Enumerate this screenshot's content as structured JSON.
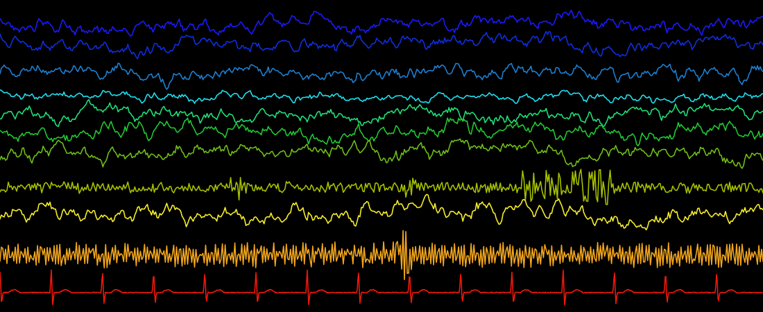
{
  "chart_data": {
    "type": "line",
    "background": "#000000",
    "grid": false,
    "axes_visible": false,
    "legend": "none",
    "title": "",
    "xlabel": "",
    "ylabel": "",
    "series": [
      {
        "color": "#1a1aff",
        "style": "slow"
      },
      {
        "color": "#0f2ee0",
        "style": "slow"
      },
      {
        "color": "#1e7fd0",
        "style": "slow"
      },
      {
        "color": "#1fe0f0",
        "style": "slow"
      },
      {
        "color": "#1fe07a",
        "style": "slow"
      },
      {
        "color": "#21c833",
        "style": "slow"
      },
      {
        "color": "#6fbf16",
        "style": "slow"
      },
      {
        "color": "#a6c000",
        "style": "burst"
      },
      {
        "color": "#f6ee2a",
        "style": "slow"
      },
      {
        "color": "#f2a51c",
        "style": "oscillation"
      },
      {
        "color": "#f0180a",
        "style": "ecg"
      }
    ]
  }
}
